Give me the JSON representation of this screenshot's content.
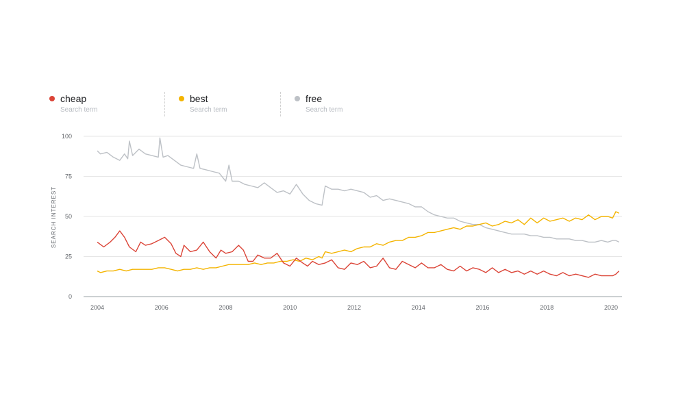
{
  "legend": [
    {
      "term": "cheap",
      "sub": "Search term",
      "color": "#db4437"
    },
    {
      "term": "best",
      "sub": "Search term",
      "color": "#f4b400"
    },
    {
      "term": "free",
      "sub": "Search term",
      "color": "#bdc1c6"
    }
  ],
  "chart_data": {
    "type": "line",
    "title": "",
    "xlabel": "",
    "ylabel": "SEARCH INTEREST",
    "xlim": [
      2004,
      2020.25
    ],
    "ylim": [
      0,
      100
    ],
    "yticks": [
      0,
      25,
      50,
      75,
      100
    ],
    "xticks": [
      2004,
      2006,
      2008,
      2010,
      2012,
      2014,
      2016,
      2018,
      2020
    ],
    "grid": true,
    "legend_position": "top-left",
    "series": [
      {
        "name": "cheap",
        "color": "#db4437",
        "points": [
          [
            2004.0,
            34
          ],
          [
            2004.2,
            31
          ],
          [
            2004.4,
            34
          ],
          [
            2004.55,
            37
          ],
          [
            2004.7,
            41
          ],
          [
            2004.85,
            37
          ],
          [
            2005.0,
            31
          ],
          [
            2005.2,
            28
          ],
          [
            2005.35,
            34
          ],
          [
            2005.5,
            32
          ],
          [
            2005.7,
            33
          ],
          [
            2005.9,
            35
          ],
          [
            2006.1,
            37
          ],
          [
            2006.3,
            33
          ],
          [
            2006.45,
            27
          ],
          [
            2006.6,
            25
          ],
          [
            2006.7,
            32
          ],
          [
            2006.9,
            28
          ],
          [
            2007.1,
            29
          ],
          [
            2007.3,
            34
          ],
          [
            2007.5,
            28
          ],
          [
            2007.7,
            24
          ],
          [
            2007.85,
            29
          ],
          [
            2008.0,
            27
          ],
          [
            2008.2,
            28
          ],
          [
            2008.4,
            32
          ],
          [
            2008.55,
            29
          ],
          [
            2008.7,
            22
          ],
          [
            2008.85,
            22
          ],
          [
            2009.0,
            26
          ],
          [
            2009.2,
            24
          ],
          [
            2009.4,
            24
          ],
          [
            2009.6,
            27
          ],
          [
            2009.8,
            21
          ],
          [
            2010.0,
            19
          ],
          [
            2010.2,
            24
          ],
          [
            2010.4,
            21
          ],
          [
            2010.55,
            19
          ],
          [
            2010.7,
            22
          ],
          [
            2010.9,
            20
          ],
          [
            2011.1,
            21
          ],
          [
            2011.3,
            23
          ],
          [
            2011.5,
            18
          ],
          [
            2011.7,
            17
          ],
          [
            2011.9,
            21
          ],
          [
            2012.1,
            20
          ],
          [
            2012.3,
            22
          ],
          [
            2012.5,
            18
          ],
          [
            2012.7,
            19
          ],
          [
            2012.9,
            24
          ],
          [
            2013.1,
            18
          ],
          [
            2013.3,
            17
          ],
          [
            2013.5,
            22
          ],
          [
            2013.7,
            20
          ],
          [
            2013.9,
            18
          ],
          [
            2014.1,
            21
          ],
          [
            2014.3,
            18
          ],
          [
            2014.5,
            18
          ],
          [
            2014.7,
            20
          ],
          [
            2014.9,
            17
          ],
          [
            2015.1,
            16
          ],
          [
            2015.3,
            19
          ],
          [
            2015.5,
            16
          ],
          [
            2015.7,
            18
          ],
          [
            2015.9,
            17
          ],
          [
            2016.1,
            15
          ],
          [
            2016.3,
            18
          ],
          [
            2016.5,
            15
          ],
          [
            2016.7,
            17
          ],
          [
            2016.9,
            15
          ],
          [
            2017.1,
            16
          ],
          [
            2017.3,
            14
          ],
          [
            2017.5,
            16
          ],
          [
            2017.7,
            14
          ],
          [
            2017.9,
            16
          ],
          [
            2018.1,
            14
          ],
          [
            2018.3,
            13
          ],
          [
            2018.5,
            15
          ],
          [
            2018.7,
            13
          ],
          [
            2018.9,
            14
          ],
          [
            2019.1,
            13
          ],
          [
            2019.3,
            12
          ],
          [
            2019.5,
            14
          ],
          [
            2019.7,
            13
          ],
          [
            2019.9,
            13
          ],
          [
            2020.05,
            13
          ],
          [
            2020.15,
            14
          ],
          [
            2020.25,
            16
          ]
        ]
      },
      {
        "name": "best",
        "color": "#f4b400",
        "points": [
          [
            2004.0,
            16
          ],
          [
            2004.1,
            15
          ],
          [
            2004.3,
            16
          ],
          [
            2004.5,
            16
          ],
          [
            2004.7,
            17
          ],
          [
            2004.9,
            16
          ],
          [
            2005.1,
            17
          ],
          [
            2005.3,
            17
          ],
          [
            2005.5,
            17
          ],
          [
            2005.7,
            17
          ],
          [
            2005.9,
            18
          ],
          [
            2006.1,
            18
          ],
          [
            2006.3,
            17
          ],
          [
            2006.5,
            16
          ],
          [
            2006.7,
            17
          ],
          [
            2006.9,
            17
          ],
          [
            2007.1,
            18
          ],
          [
            2007.3,
            17
          ],
          [
            2007.5,
            18
          ],
          [
            2007.7,
            18
          ],
          [
            2007.9,
            19
          ],
          [
            2008.1,
            20
          ],
          [
            2008.3,
            20
          ],
          [
            2008.5,
            20
          ],
          [
            2008.7,
            20
          ],
          [
            2008.9,
            21
          ],
          [
            2009.1,
            20
          ],
          [
            2009.3,
            21
          ],
          [
            2009.5,
            21
          ],
          [
            2009.7,
            22
          ],
          [
            2009.9,
            22
          ],
          [
            2010.1,
            23
          ],
          [
            2010.3,
            22
          ],
          [
            2010.5,
            24
          ],
          [
            2010.7,
            23
          ],
          [
            2010.9,
            25
          ],
          [
            2011.0,
            24
          ],
          [
            2011.1,
            28
          ],
          [
            2011.3,
            27
          ],
          [
            2011.5,
            28
          ],
          [
            2011.7,
            29
          ],
          [
            2011.9,
            28
          ],
          [
            2012.1,
            30
          ],
          [
            2012.3,
            31
          ],
          [
            2012.5,
            31
          ],
          [
            2012.7,
            33
          ],
          [
            2012.9,
            32
          ],
          [
            2013.1,
            34
          ],
          [
            2013.3,
            35
          ],
          [
            2013.5,
            35
          ],
          [
            2013.7,
            37
          ],
          [
            2013.9,
            37
          ],
          [
            2014.1,
            38
          ],
          [
            2014.3,
            40
          ],
          [
            2014.5,
            40
          ],
          [
            2014.7,
            41
          ],
          [
            2014.9,
            42
          ],
          [
            2015.1,
            43
          ],
          [
            2015.3,
            42
          ],
          [
            2015.5,
            44
          ],
          [
            2015.7,
            44
          ],
          [
            2015.9,
            45
          ],
          [
            2016.1,
            46
          ],
          [
            2016.3,
            44
          ],
          [
            2016.5,
            45
          ],
          [
            2016.7,
            47
          ],
          [
            2016.9,
            46
          ],
          [
            2017.1,
            48
          ],
          [
            2017.3,
            45
          ],
          [
            2017.5,
            49
          ],
          [
            2017.7,
            46
          ],
          [
            2017.9,
            49
          ],
          [
            2018.1,
            47
          ],
          [
            2018.3,
            48
          ],
          [
            2018.5,
            49
          ],
          [
            2018.7,
            47
          ],
          [
            2018.9,
            49
          ],
          [
            2019.1,
            48
          ],
          [
            2019.3,
            51
          ],
          [
            2019.5,
            48
          ],
          [
            2019.7,
            50
          ],
          [
            2019.9,
            50
          ],
          [
            2020.05,
            49
          ],
          [
            2020.15,
            53
          ],
          [
            2020.25,
            52
          ]
        ]
      },
      {
        "name": "free",
        "color": "#bdc1c6",
        "points": [
          [
            2004.0,
            91
          ],
          [
            2004.1,
            89
          ],
          [
            2004.3,
            90
          ],
          [
            2004.5,
            87
          ],
          [
            2004.7,
            85
          ],
          [
            2004.85,
            89
          ],
          [
            2004.95,
            86
          ],
          [
            2005.0,
            97
          ],
          [
            2005.1,
            88
          ],
          [
            2005.3,
            92
          ],
          [
            2005.5,
            89
          ],
          [
            2005.7,
            88
          ],
          [
            2005.9,
            87
          ],
          [
            2005.95,
            99
          ],
          [
            2006.05,
            87
          ],
          [
            2006.2,
            88
          ],
          [
            2006.4,
            85
          ],
          [
            2006.6,
            82
          ],
          [
            2006.8,
            81
          ],
          [
            2007.0,
            80
          ],
          [
            2007.1,
            89
          ],
          [
            2007.2,
            80
          ],
          [
            2007.4,
            79
          ],
          [
            2007.6,
            78
          ],
          [
            2007.8,
            77
          ],
          [
            2008.0,
            72
          ],
          [
            2008.1,
            82
          ],
          [
            2008.2,
            72
          ],
          [
            2008.4,
            72
          ],
          [
            2008.6,
            70
          ],
          [
            2008.8,
            69
          ],
          [
            2009.0,
            68
          ],
          [
            2009.2,
            71
          ],
          [
            2009.4,
            68
          ],
          [
            2009.6,
            65
          ],
          [
            2009.8,
            66
          ],
          [
            2010.0,
            64
          ],
          [
            2010.2,
            70
          ],
          [
            2010.4,
            64
          ],
          [
            2010.6,
            60
          ],
          [
            2010.8,
            58
          ],
          [
            2011.0,
            57
          ],
          [
            2011.1,
            69
          ],
          [
            2011.3,
            67
          ],
          [
            2011.5,
            67
          ],
          [
            2011.7,
            66
          ],
          [
            2011.9,
            67
          ],
          [
            2012.1,
            66
          ],
          [
            2012.3,
            65
          ],
          [
            2012.5,
            62
          ],
          [
            2012.7,
            63
          ],
          [
            2012.9,
            60
          ],
          [
            2013.1,
            61
          ],
          [
            2013.3,
            60
          ],
          [
            2013.5,
            59
          ],
          [
            2013.7,
            58
          ],
          [
            2013.9,
            56
          ],
          [
            2014.1,
            56
          ],
          [
            2014.3,
            53
          ],
          [
            2014.5,
            51
          ],
          [
            2014.7,
            50
          ],
          [
            2014.9,
            49
          ],
          [
            2015.1,
            49
          ],
          [
            2015.3,
            47
          ],
          [
            2015.5,
            46
          ],
          [
            2015.7,
            45
          ],
          [
            2015.9,
            45
          ],
          [
            2016.1,
            43
          ],
          [
            2016.3,
            42
          ],
          [
            2016.5,
            41
          ],
          [
            2016.7,
            40
          ],
          [
            2016.9,
            39
          ],
          [
            2017.1,
            39
          ],
          [
            2017.3,
            39
          ],
          [
            2017.5,
            38
          ],
          [
            2017.7,
            38
          ],
          [
            2017.9,
            37
          ],
          [
            2018.1,
            37
          ],
          [
            2018.3,
            36
          ],
          [
            2018.5,
            36
          ],
          [
            2018.7,
            36
          ],
          [
            2018.9,
            35
          ],
          [
            2019.1,
            35
          ],
          [
            2019.3,
            34
          ],
          [
            2019.5,
            34
          ],
          [
            2019.7,
            35
          ],
          [
            2019.9,
            34
          ],
          [
            2020.05,
            35
          ],
          [
            2020.15,
            35
          ],
          [
            2020.25,
            34
          ]
        ]
      }
    ]
  }
}
